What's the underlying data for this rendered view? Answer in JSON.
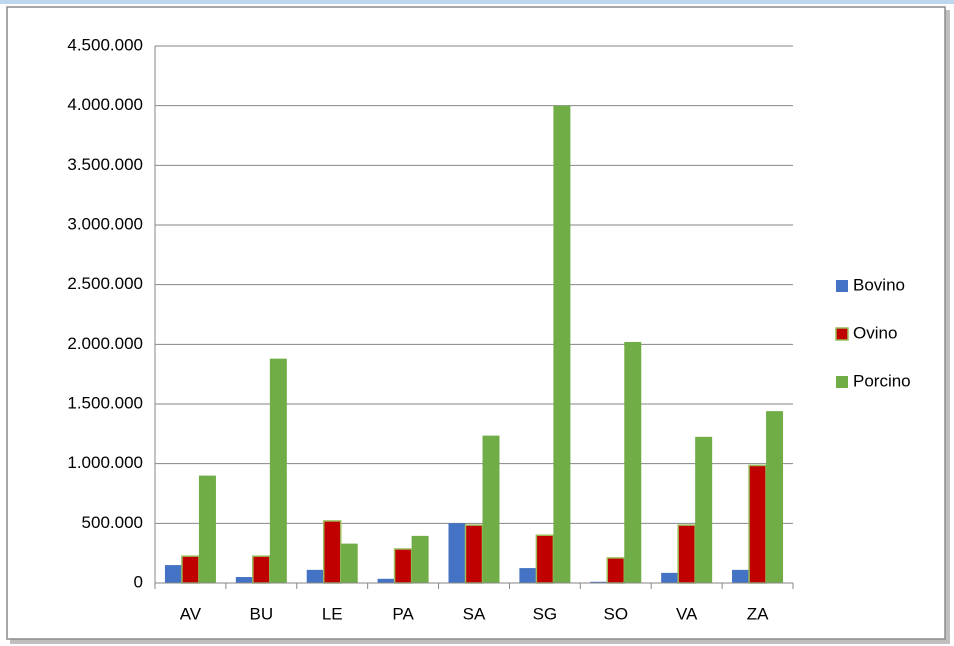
{
  "chart_data": {
    "type": "bar",
    "categories": [
      "AV",
      "BU",
      "LE",
      "PA",
      "SA",
      "SG",
      "SO",
      "VA",
      "ZA"
    ],
    "series": [
      {
        "name": "Bovino",
        "color": "#4472c4",
        "values": [
          150000,
          50000,
          110000,
          35000,
          500000,
          125000,
          10000,
          85000,
          110000
        ]
      },
      {
        "name": "Ovino",
        "color": "#c00000",
        "values": [
          225000,
          225000,
          520000,
          285000,
          485000,
          400000,
          210000,
          485000,
          985000
        ]
      },
      {
        "name": "Porcino",
        "color": "#70ad47",
        "values": [
          900000,
          1880000,
          330000,
          395000,
          1235000,
          4000000,
          2020000,
          1225000,
          1440000
        ]
      }
    ],
    "ylim": [
      0,
      4500000
    ],
    "yticks": [
      0,
      {
        "value": 500000,
        "label": "500.000"
      },
      {
        "value": 1000000,
        "label": "1.000.000"
      },
      {
        "value": 1500000,
        "label": "1.500.000"
      },
      {
        "value": 2000000,
        "label": "2.000.000"
      },
      {
        "value": 2500000,
        "label": "2.500.000"
      },
      {
        "value": 3000000,
        "label": "3.000.000"
      },
      {
        "value": 3500000,
        "label": "3.500.000"
      },
      {
        "value": 4000000,
        "label": "4.000.000"
      },
      {
        "value": 4500000,
        "label": "4.500.000"
      }
    ],
    "grid": true,
    "legend": "right"
  }
}
